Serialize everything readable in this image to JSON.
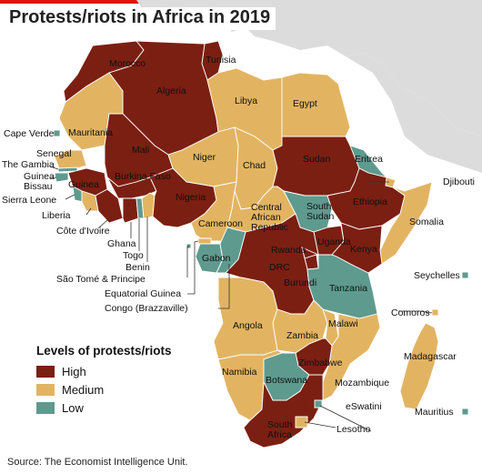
{
  "title": "Protests/riots in Africa in 2019",
  "legend": {
    "title": "Levels of protests/riots",
    "items": [
      {
        "label": "High",
        "color": "#7b1f12"
      },
      {
        "label": "Medium",
        "color": "#e2b462"
      },
      {
        "label": "Low",
        "color": "#5f9a8f"
      }
    ]
  },
  "colors": {
    "sea": "#ffffff",
    "land_outside": "#dcdcdc",
    "border": "#ffffff",
    "leader": "#333333"
  },
  "countries": {
    "morocco": {
      "label": "Morocco",
      "level": "High"
    },
    "tunisia": {
      "label": "Tunisia",
      "level": "High"
    },
    "algeria": {
      "label": "Algeria",
      "level": "High"
    },
    "libya": {
      "label": "Libya",
      "level": "Medium"
    },
    "egypt": {
      "label": "Egypt",
      "level": "Medium"
    },
    "mauritania": {
      "label": "Mauritania",
      "level": "Medium"
    },
    "mali": {
      "label": "Mali",
      "level": "High"
    },
    "niger": {
      "label": "Niger",
      "level": "Medium"
    },
    "chad": {
      "label": "Chad",
      "level": "Medium"
    },
    "sudan": {
      "label": "Sudan",
      "level": "High"
    },
    "eritrea": {
      "label": "Eritrea",
      "level": "Low"
    },
    "djibouti": {
      "label": "Djibouti",
      "level": "Medium"
    },
    "senegal": {
      "label": "Senegal",
      "level": "Medium"
    },
    "the_gambia": {
      "label": "The Gambia",
      "level": "Low"
    },
    "guinea_bissau": {
      "label": "Guinea\nBissau",
      "level": "Low"
    },
    "guinea": {
      "label": "Guinea",
      "level": "High"
    },
    "sierra_leone": {
      "label": "Sierra Leone",
      "level": "Low"
    },
    "liberia": {
      "label": "Liberia",
      "level": "Medium"
    },
    "burkina_faso": {
      "label": "Burkina Faso",
      "level": "High"
    },
    "cote_divoire": {
      "label": "Côte d'Ivoire",
      "level": "High"
    },
    "ghana": {
      "label": "Ghana",
      "level": "High"
    },
    "togo": {
      "label": "Togo",
      "level": "Low"
    },
    "benin": {
      "label": "Benin",
      "level": "Medium"
    },
    "nigeria": {
      "label": "Nigeria",
      "level": "High"
    },
    "cameroon": {
      "label": "Cameroon",
      "level": "Medium"
    },
    "car": {
      "label": "Central\nAfrican\nRepublic",
      "level": "Medium"
    },
    "south_sudan": {
      "label": "South\nSudan",
      "level": "Low"
    },
    "ethiopia": {
      "label": "Ethiopia",
      "level": "High"
    },
    "somalia": {
      "label": "Somalia",
      "level": "Medium"
    },
    "uganda": {
      "label": "Uganda",
      "level": "High"
    },
    "kenya": {
      "label": "Kenya",
      "level": "High"
    },
    "rwanda": {
      "label": "Rwanda",
      "level": "High"
    },
    "burundi": {
      "label": "Burundi",
      "level": "High"
    },
    "drc": {
      "label": "DRC",
      "level": "High"
    },
    "gabon": {
      "label": "Gabon",
      "level": "Low"
    },
    "equatorial_guinea": {
      "label": "Equatorial Guinea",
      "level": "Medium"
    },
    "congo": {
      "label": "Congo (Brazzaville)",
      "level": "Low"
    },
    "sao_tome": {
      "label": "São Tomé & Principe",
      "level": "Low"
    },
    "tanzania": {
      "label": "Tanzania",
      "level": "Low"
    },
    "angola": {
      "label": "Angola",
      "level": "Medium"
    },
    "zambia": {
      "label": "Zambia",
      "level": "Medium"
    },
    "malawi": {
      "label": "Malawi",
      "level": "Medium"
    },
    "mozambique": {
      "label": "Mozambique",
      "level": "Medium"
    },
    "zimbabwe": {
      "label": "Zimbabwe",
      "level": "High"
    },
    "namibia": {
      "label": "Namibia",
      "level": "Medium"
    },
    "botswana": {
      "label": "Botswana",
      "level": "Low"
    },
    "south_africa": {
      "label": "South\nAfrica",
      "level": "High"
    },
    "eswatini": {
      "label": "eSwatini",
      "level": "Low"
    },
    "lesotho": {
      "label": "Lesotho",
      "level": "Medium"
    },
    "madagascar": {
      "label": "Madagascar",
      "level": "Medium"
    },
    "comoros": {
      "label": "Comoros",
      "level": "Medium"
    },
    "seychelles": {
      "label": "Seychelles",
      "level": "Low"
    },
    "mauritius": {
      "label": "Mauritius",
      "level": "Low"
    },
    "cape_verde": {
      "label": "Cape Verde",
      "level": "Low"
    }
  },
  "source": "Source: The Economist Intelligence Unit."
}
